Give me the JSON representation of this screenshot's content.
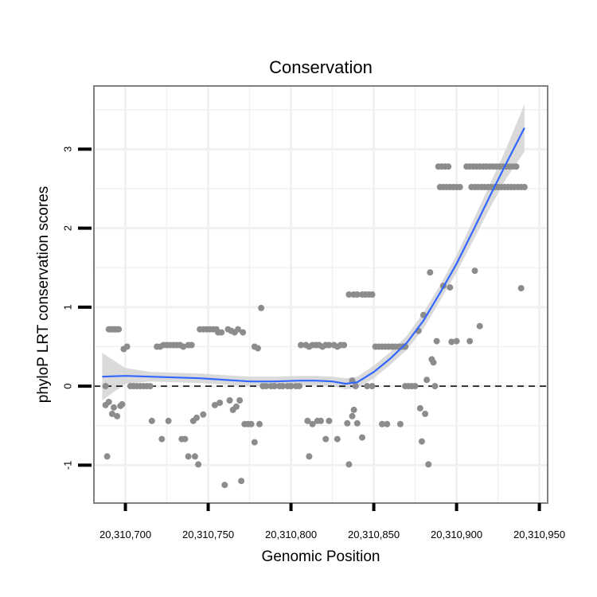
{
  "chart_data": {
    "type": "scatter",
    "title": "Conservation",
    "xlabel": "Genomic Position",
    "ylabel": "phyloP LRT conservation scores",
    "xlim": [
      20310681,
      20310955
    ],
    "ylim": [
      -1.48,
      3.8
    ],
    "xticks": [
      20310700,
      20310750,
      20310800,
      20310850,
      20310900,
      20310950
    ],
    "xtick_labels": [
      "20,310,700",
      "20,310,750",
      "20,310,800",
      "20,310,850",
      "20,310,900",
      "20,310,950"
    ],
    "yticks": [
      -1,
      0,
      1,
      2,
      3
    ],
    "ytick_labels": [
      "-1",
      "0",
      "1",
      "2",
      "3"
    ],
    "reference_line": {
      "y": 0,
      "style": "dashed"
    },
    "colors": {
      "points": "#8c8c8c",
      "smooth_line": "#3366ff",
      "confidence_band": "#d3d3d3",
      "panel_border": "#7f7f7f",
      "grid": "#f1f1f1"
    },
    "series": [
      {
        "name": "scores",
        "kind": "points",
        "points": [
          [
            20310688,
            0.0
          ],
          [
            20310690,
            0.72
          ],
          [
            20310691,
            0.72
          ],
          [
            20310692,
            0.72
          ],
          [
            20310693,
            0.72
          ],
          [
            20310694,
            0.72
          ],
          [
            20310695,
            0.72
          ],
          [
            20310696,
            0.72
          ],
          [
            20310688,
            -0.24
          ],
          [
            20310690,
            -0.2
          ],
          [
            20310692,
            -0.35
          ],
          [
            20310693,
            -0.27
          ],
          [
            20310695,
            -0.38
          ],
          [
            20310697,
            -0.25
          ],
          [
            20310698,
            -0.23
          ],
          [
            20310689,
            -0.89
          ],
          [
            20310699,
            0.47
          ],
          [
            20310701,
            0.5
          ],
          [
            20310703,
            0.0
          ],
          [
            20310705,
            0.0
          ],
          [
            20310707,
            0.0
          ],
          [
            20310709,
            0.0
          ],
          [
            20310711,
            0.0
          ],
          [
            20310713,
            0.0
          ],
          [
            20310715,
            0.0
          ],
          [
            20310716,
            -0.44
          ],
          [
            20310719,
            0.5
          ],
          [
            20310721,
            0.5
          ],
          [
            20310723,
            0.52
          ],
          [
            20310725,
            0.52
          ],
          [
            20310727,
            0.52
          ],
          [
            20310729,
            0.52
          ],
          [
            20310731,
            0.52
          ],
          [
            20310733,
            0.52
          ],
          [
            20310735,
            0.5
          ],
          [
            20310738,
            0.52
          ],
          [
            20310740,
            0.52
          ],
          [
            20310722,
            -0.67
          ],
          [
            20310726,
            -0.44
          ],
          [
            20310734,
            -0.67
          ],
          [
            20310736,
            -0.67
          ],
          [
            20310738,
            -0.89
          ],
          [
            20310741,
            -0.44
          ],
          [
            20310742,
            -0.89
          ],
          [
            20310743,
            -0.4
          ],
          [
            20310744,
            -0.99
          ],
          [
            20310747,
            -0.36
          ],
          [
            20310745,
            0.72
          ],
          [
            20310747,
            0.72
          ],
          [
            20310749,
            0.72
          ],
          [
            20310751,
            0.72
          ],
          [
            20310753,
            0.72
          ],
          [
            20310755,
            0.72
          ],
          [
            20310756,
            0.68
          ],
          [
            20310758,
            0.68
          ],
          [
            20310762,
            0.72
          ],
          [
            20310764,
            0.7
          ],
          [
            20310766,
            0.68
          ],
          [
            20310768,
            0.72
          ],
          [
            20310771,
            0.68
          ],
          [
            20310754,
            -0.24
          ],
          [
            20310757,
            -0.21
          ],
          [
            20310760,
            -1.25
          ],
          [
            20310763,
            -0.18
          ],
          [
            20310765,
            -0.3
          ],
          [
            20310767,
            -0.26
          ],
          [
            20310769,
            -0.18
          ],
          [
            20310770,
            -1.2
          ],
          [
            20310772,
            -0.48
          ],
          [
            20310774,
            -0.48
          ],
          [
            20310776,
            -0.48
          ],
          [
            20310778,
            -0.71
          ],
          [
            20310781,
            -0.48
          ],
          [
            20310778,
            0.5
          ],
          [
            20310780,
            0.48
          ],
          [
            20310782,
            0.99
          ],
          [
            20310783,
            0.0
          ],
          [
            20310785,
            0.0
          ],
          [
            20310788,
            0.0
          ],
          [
            20310790,
            0.0
          ],
          [
            20310793,
            0.0
          ],
          [
            20310795,
            0.0
          ],
          [
            20310798,
            0.0
          ],
          [
            20310800,
            0.0
          ],
          [
            20310803,
            0.0
          ],
          [
            20310805,
            0.0
          ],
          [
            20310806,
            0.52
          ],
          [
            20310809,
            0.52
          ],
          [
            20310811,
            0.5
          ],
          [
            20310813,
            0.52
          ],
          [
            20310815,
            0.52
          ],
          [
            20310817,
            0.52
          ],
          [
            20310819,
            0.5
          ],
          [
            20310821,
            0.52
          ],
          [
            20310823,
            0.52
          ],
          [
            20310826,
            0.52
          ],
          [
            20310828,
            0.5
          ],
          [
            20310830,
            0.52
          ],
          [
            20310832,
            0.52
          ],
          [
            20310810,
            -0.44
          ],
          [
            20310811,
            -0.89
          ],
          [
            20310813,
            -0.48
          ],
          [
            20310816,
            -0.44
          ],
          [
            20310818,
            -0.44
          ],
          [
            20310821,
            -0.67
          ],
          [
            20310823,
            -0.44
          ],
          [
            20310828,
            -0.67
          ],
          [
            20310835,
            1.16
          ],
          [
            20310838,
            1.16
          ],
          [
            20310840,
            1.16
          ],
          [
            20310843,
            1.16
          ],
          [
            20310845,
            1.16
          ],
          [
            20310847,
            1.16
          ],
          [
            20310849,
            1.16
          ],
          [
            20310834,
            -0.47
          ],
          [
            20310835,
            -0.99
          ],
          [
            20310837,
            -0.38
          ],
          [
            20310838,
            -0.3
          ],
          [
            20310840,
            -0.47
          ],
          [
            20310843,
            -0.65
          ],
          [
            20310837,
            0.07
          ],
          [
            20310839,
            0.0
          ],
          [
            20310846,
            0.0
          ],
          [
            20310849,
            0.0
          ],
          [
            20310851,
            0.5
          ],
          [
            20310853,
            0.5
          ],
          [
            20310855,
            0.5
          ],
          [
            20310857,
            0.5
          ],
          [
            20310859,
            0.5
          ],
          [
            20310861,
            0.5
          ],
          [
            20310863,
            0.5
          ],
          [
            20310865,
            0.5
          ],
          [
            20310867,
            0.5
          ],
          [
            20310869,
            0.5
          ],
          [
            20310855,
            -0.48
          ],
          [
            20310858,
            -0.48
          ],
          [
            20310866,
            -0.48
          ],
          [
            20310868,
            0.5
          ],
          [
            20310869,
            0.0
          ],
          [
            20310871,
            0.0
          ],
          [
            20310873,
            0.0
          ],
          [
            20310875,
            0.0
          ],
          [
            20310877,
            0.7
          ],
          [
            20310878,
            -0.28
          ],
          [
            20310879,
            -0.7
          ],
          [
            20310880,
            0.9
          ],
          [
            20310881,
            -0.35
          ],
          [
            20310882,
            0.08
          ],
          [
            20310883,
            -0.99
          ],
          [
            20310884,
            1.44
          ],
          [
            20310885,
            0.34
          ],
          [
            20310886,
            0.3
          ],
          [
            20310887,
            0.0
          ],
          [
            20310888,
            0.57
          ],
          [
            20310889,
            2.78
          ],
          [
            20310891,
            2.78
          ],
          [
            20310893,
            2.78
          ],
          [
            20310895,
            2.78
          ],
          [
            20310890,
            2.52
          ],
          [
            20310892,
            2.52
          ],
          [
            20310894,
            2.52
          ],
          [
            20310896,
            2.52
          ],
          [
            20310898,
            2.52
          ],
          [
            20310900,
            2.52
          ],
          [
            20310902,
            2.52
          ],
          [
            20310892,
            1.27
          ],
          [
            20310896,
            1.25
          ],
          [
            20310900,
            0.57
          ],
          [
            20310897,
            0.56
          ],
          [
            20310908,
            0.57
          ],
          [
            20310911,
            1.46
          ],
          [
            20310914,
            0.76
          ],
          [
            20310906,
            2.78
          ],
          [
            20310908,
            2.78
          ],
          [
            20310910,
            2.78
          ],
          [
            20310912,
            2.78
          ],
          [
            20310914,
            2.78
          ],
          [
            20310916,
            2.78
          ],
          [
            20310918,
            2.78
          ],
          [
            20310920,
            2.78
          ],
          [
            20310922,
            2.78
          ],
          [
            20310924,
            2.78
          ],
          [
            20310926,
            2.78
          ],
          [
            20310928,
            2.78
          ],
          [
            20310930,
            2.78
          ],
          [
            20310932,
            2.78
          ],
          [
            20310934,
            2.78
          ],
          [
            20310936,
            2.78
          ],
          [
            20310909,
            2.52
          ],
          [
            20310911,
            2.52
          ],
          [
            20310913,
            2.52
          ],
          [
            20310915,
            2.52
          ],
          [
            20310917,
            2.52
          ],
          [
            20310919,
            2.52
          ],
          [
            20310921,
            2.52
          ],
          [
            20310923,
            2.52
          ],
          [
            20310925,
            2.52
          ],
          [
            20310927,
            2.52
          ],
          [
            20310929,
            2.52
          ],
          [
            20310931,
            2.52
          ],
          [
            20310933,
            2.52
          ],
          [
            20310935,
            2.52
          ],
          [
            20310937,
            2.52
          ],
          [
            20310939,
            2.52
          ],
          [
            20310941,
            2.52
          ],
          [
            20310939,
            1.24
          ]
        ]
      },
      {
        "name": "loess fit",
        "kind": "smooth",
        "x": [
          20310686,
          20310700,
          20310715,
          20310730,
          20310745,
          20310760,
          20310775,
          20310790,
          20310805,
          20310815,
          20310825,
          20310833,
          20310840,
          20310850,
          20310860,
          20310870,
          20310880,
          20310890,
          20310900,
          20310910,
          20310920,
          20310930,
          20310941
        ],
        "y": [
          0.12,
          0.13,
          0.12,
          0.11,
          0.1,
          0.08,
          0.06,
          0.06,
          0.07,
          0.07,
          0.06,
          0.03,
          0.05,
          0.18,
          0.35,
          0.55,
          0.83,
          1.18,
          1.55,
          1.97,
          2.4,
          2.82,
          3.27
        ],
        "se": [
          0.3,
          0.1,
          0.06,
          0.06,
          0.06,
          0.06,
          0.06,
          0.06,
          0.06,
          0.06,
          0.06,
          0.07,
          0.07,
          0.08,
          0.08,
          0.09,
          0.1,
          0.1,
          0.11,
          0.13,
          0.15,
          0.19,
          0.3
        ]
      }
    ]
  }
}
